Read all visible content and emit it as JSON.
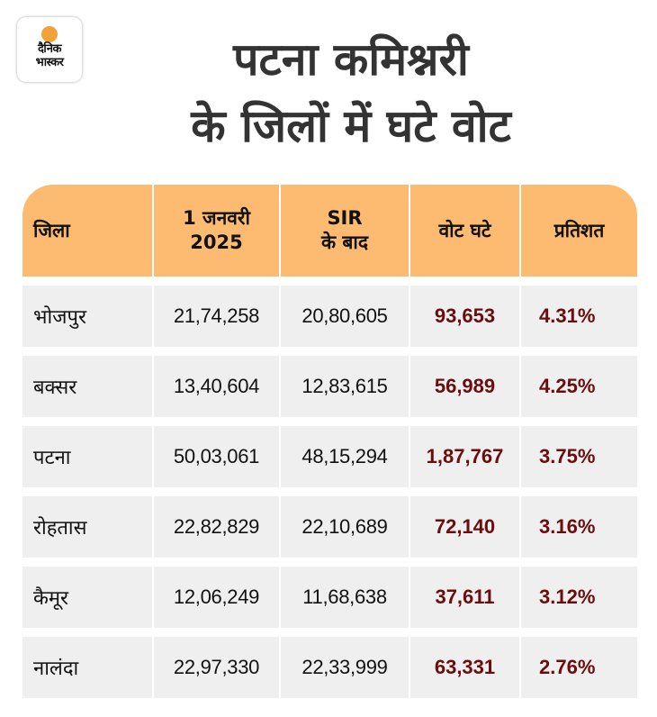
{
  "brand": {
    "logo_line1": "दैनिक",
    "logo_line2": "भास्कर",
    "accent_color": "#f3a23a"
  },
  "title": {
    "line1": "पटना कमिश्नरी",
    "line2": "के जिलों में घटे वोट"
  },
  "table": {
    "header_color": "#fcbb71",
    "value_color": "#6b0d0d",
    "headers": [
      {
        "line1": "जिला",
        "line2": ""
      },
      {
        "line1": "1 जनवरी",
        "line2": "2025"
      },
      {
        "line1": "SIR",
        "line2": "के बाद"
      },
      {
        "line1": "वोट घटे",
        "line2": ""
      },
      {
        "line1": "प्रतिशत",
        "line2": ""
      }
    ],
    "rows": [
      {
        "district": "भोजपुर",
        "jan_2025": "21,74,258",
        "after_sir": "20,80,605",
        "votes_reduced": "93,653",
        "percent": "4.31%"
      },
      {
        "district": "बक्सर",
        "jan_2025": "13,40,604",
        "after_sir": "12,83,615",
        "votes_reduced": "56,989",
        "percent": "4.25%"
      },
      {
        "district": "पटना",
        "jan_2025": "50,03,061",
        "after_sir": "48,15,294",
        "votes_reduced": "1,87,767",
        "percent": "3.75%"
      },
      {
        "district": "रोहतास",
        "jan_2025": "22,82,829",
        "after_sir": "22,10,689",
        "votes_reduced": "72,140",
        "percent": "3.16%"
      },
      {
        "district": "कैमूर",
        "jan_2025": "12,06,249",
        "after_sir": "11,68,638",
        "votes_reduced": "37,611",
        "percent": "3.12%"
      },
      {
        "district": "नालंदा",
        "jan_2025": "22,97,330",
        "after_sir": "22,33,999",
        "votes_reduced": "63,331",
        "percent": "2.76%"
      }
    ]
  }
}
